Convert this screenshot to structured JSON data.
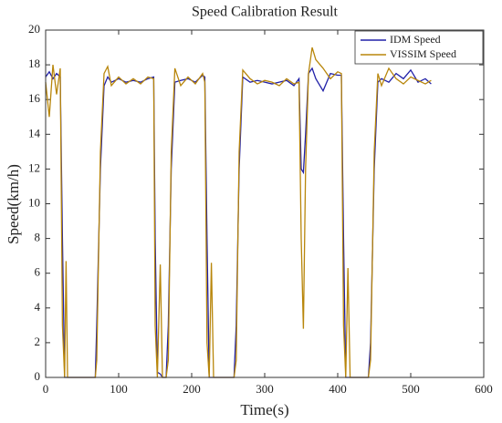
{
  "chart_data": {
    "type": "line",
    "title": "Speed Calibration Result",
    "xlabel": "Time(s)",
    "ylabel": "Speed(km/h)",
    "x": [
      0,
      5,
      10,
      15,
      20,
      23,
      26,
      28,
      30,
      35,
      68,
      70,
      75,
      80,
      85,
      90,
      100,
      110,
      120,
      130,
      140,
      148,
      150,
      153,
      157,
      160,
      165,
      168,
      172,
      177,
      185,
      195,
      205,
      215,
      218,
      221,
      224,
      227,
      230,
      258,
      261,
      265,
      270,
      280,
      290,
      300,
      310,
      320,
      330,
      340,
      347,
      350,
      353,
      356,
      360,
      365,
      370,
      380,
      390,
      400,
      405,
      408,
      411,
      414,
      417,
      442,
      445,
      450,
      455,
      460,
      470,
      480,
      490,
      500,
      510,
      520,
      528
    ],
    "series": [
      {
        "name": "IDM Speed",
        "color": "#2020a8",
        "values": [
          17.3,
          17.6,
          17.2,
          17.5,
          17.3,
          8,
          0,
          0,
          0,
          0,
          0,
          3,
          12,
          16.8,
          17.3,
          17,
          17.2,
          17,
          17.1,
          17,
          17.2,
          17.3,
          8,
          0.3,
          0.2,
          0,
          0,
          3,
          12,
          17,
          17.1,
          17.2,
          17,
          17.4,
          17.3,
          8,
          0,
          0,
          0,
          0,
          3,
          12,
          17.3,
          17,
          17.1,
          17,
          16.9,
          17,
          17.1,
          16.8,
          17.2,
          12,
          11.8,
          14,
          17.5,
          17.8,
          17.2,
          16.5,
          17.5,
          17.4,
          17.4,
          8,
          0,
          0,
          0,
          0,
          2,
          12,
          17,
          17.2,
          17,
          17.5,
          17.2,
          17.7,
          17,
          17.2,
          16.9
        ]
      },
      {
        "name": "VISSIM Speed",
        "color": "#b8860b",
        "values": [
          17,
          15,
          18,
          16.3,
          17.8,
          3,
          0,
          6.7,
          0,
          0,
          0,
          1,
          13,
          17.5,
          17.9,
          16.8,
          17.3,
          16.9,
          17.2,
          16.9,
          17.3,
          17.2,
          3,
          0,
          6.5,
          0,
          0,
          1,
          13,
          17.8,
          16.8,
          17.3,
          16.9,
          17.5,
          17,
          2,
          0,
          6.6,
          0,
          0,
          1,
          13,
          17.7,
          17.2,
          16.9,
          17.1,
          17,
          16.8,
          17.2,
          16.9,
          17,
          8,
          2.8,
          12,
          17.5,
          19,
          18.3,
          17.8,
          17.2,
          17.6,
          17.5,
          3,
          0,
          6.3,
          0,
          0,
          1,
          13,
          17.5,
          16.8,
          17.8,
          17.2,
          16.9,
          17.3,
          17.1,
          16.9,
          17.1
        ]
      }
    ],
    "xlim": [
      0,
      600
    ],
    "xticks": [
      0,
      100,
      200,
      300,
      400,
      500,
      600
    ],
    "ylim": [
      0,
      20
    ],
    "yticks": [
      0,
      2,
      4,
      6,
      8,
      10,
      12,
      14,
      16,
      18,
      20
    ],
    "legend": "upper right"
  }
}
